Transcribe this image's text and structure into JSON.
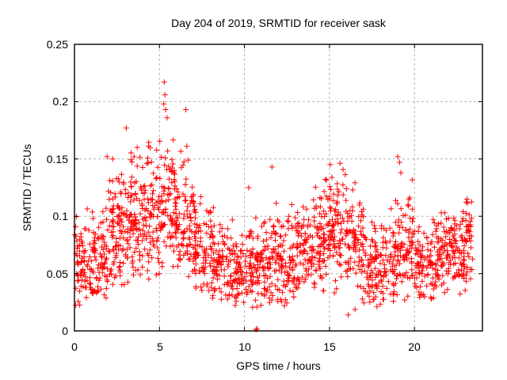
{
  "title": "Day 204 of 2019, SRMTID for receiver sask",
  "chart_data": {
    "type": "scatter",
    "title": "Day 204 of 2019, SRMTID for receiver sask",
    "xlabel": "GPS time / hours",
    "ylabel": "SRMTID / TECUs",
    "xlim": [
      0,
      24
    ],
    "ylim": [
      0,
      0.25
    ],
    "xticks": [
      0,
      5,
      10,
      15,
      20
    ],
    "xtick_labels": [
      "0",
      "5",
      "10",
      "15",
      "20"
    ],
    "yticks": [
      0,
      0.05,
      0.1,
      0.15,
      0.2,
      0.25
    ],
    "ytick_labels": [
      "0",
      "0.05",
      "0.1",
      "0.15",
      "0.2",
      "0.25"
    ],
    "grid": true,
    "legend": "none",
    "marker": "plus",
    "marker_color": "#ff0000",
    "grid_color": "#b2b2b2",
    "axis_color": "#000000",
    "background": "#ffffff",
    "seed": 20419,
    "density_profile": [
      {
        "h0": 0,
        "h1": 1,
        "n": 78,
        "mean": 0.055,
        "sd": 0.021,
        "lo": 0.022,
        "hi": 0.112
      },
      {
        "h0": 1,
        "h1": 2,
        "n": 82,
        "mean": 0.062,
        "sd": 0.024,
        "lo": 0.025,
        "hi": 0.155
      },
      {
        "h0": 2,
        "h1": 3,
        "n": 95,
        "mean": 0.086,
        "sd": 0.027,
        "lo": 0.035,
        "hi": 0.163
      },
      {
        "h0": 3,
        "h1": 4,
        "n": 95,
        "mean": 0.093,
        "sd": 0.028,
        "lo": 0.04,
        "hi": 0.178
      },
      {
        "h0": 4,
        "h1": 5,
        "n": 90,
        "mean": 0.101,
        "sd": 0.027,
        "lo": 0.045,
        "hi": 0.168
      },
      {
        "h0": 5,
        "h1": 6,
        "n": 90,
        "mean": 0.113,
        "sd": 0.03,
        "lo": 0.05,
        "hi": 0.2
      },
      {
        "h0": 6,
        "h1": 7,
        "n": 85,
        "mean": 0.098,
        "sd": 0.028,
        "lo": 0.045,
        "hi": 0.163
      },
      {
        "h0": 7,
        "h1": 8,
        "n": 80,
        "mean": 0.072,
        "sd": 0.022,
        "lo": 0.032,
        "hi": 0.128
      },
      {
        "h0": 8,
        "h1": 9,
        "n": 80,
        "mean": 0.06,
        "sd": 0.02,
        "lo": 0.022,
        "hi": 0.118
      },
      {
        "h0": 9,
        "h1": 10,
        "n": 80,
        "mean": 0.051,
        "sd": 0.017,
        "lo": 0.018,
        "hi": 0.098
      },
      {
        "h0": 10,
        "h1": 11,
        "n": 80,
        "mean": 0.052,
        "sd": 0.019,
        "lo": 0.02,
        "hi": 0.128
      },
      {
        "h0": 11,
        "h1": 12,
        "n": 80,
        "mean": 0.057,
        "sd": 0.021,
        "lo": 0.024,
        "hi": 0.145
      },
      {
        "h0": 12,
        "h1": 13,
        "n": 80,
        "mean": 0.058,
        "sd": 0.02,
        "lo": 0.022,
        "hi": 0.118
      },
      {
        "h0": 13,
        "h1": 14,
        "n": 80,
        "mean": 0.067,
        "sd": 0.022,
        "lo": 0.028,
        "hi": 0.135
      },
      {
        "h0": 14,
        "h1": 15,
        "n": 85,
        "mean": 0.078,
        "sd": 0.024,
        "lo": 0.034,
        "hi": 0.148
      },
      {
        "h0": 15,
        "h1": 16,
        "n": 90,
        "mean": 0.088,
        "sd": 0.026,
        "lo": 0.03,
        "hi": 0.147
      },
      {
        "h0": 16,
        "h1": 17,
        "n": 85,
        "mean": 0.078,
        "sd": 0.025,
        "lo": 0.013,
        "hi": 0.132
      },
      {
        "h0": 17,
        "h1": 18,
        "n": 75,
        "mean": 0.058,
        "sd": 0.019,
        "lo": 0.02,
        "hi": 0.096
      },
      {
        "h0": 18,
        "h1": 19,
        "n": 75,
        "mean": 0.062,
        "sd": 0.023,
        "lo": 0.022,
        "hi": 0.138
      },
      {
        "h0": 19,
        "h1": 20,
        "n": 80,
        "mean": 0.072,
        "sd": 0.026,
        "lo": 0.026,
        "hi": 0.148
      },
      {
        "h0": 20,
        "h1": 21,
        "n": 75,
        "mean": 0.06,
        "sd": 0.018,
        "lo": 0.025,
        "hi": 0.102
      },
      {
        "h0": 21,
        "h1": 22,
        "n": 80,
        "mean": 0.066,
        "sd": 0.02,
        "lo": 0.028,
        "hi": 0.112
      },
      {
        "h0": 22,
        "h1": 23,
        "n": 85,
        "mean": 0.071,
        "sd": 0.021,
        "lo": 0.032,
        "hi": 0.12
      },
      {
        "h0": 23,
        "h1": 23.45,
        "n": 38,
        "mean": 0.08,
        "sd": 0.02,
        "lo": 0.035,
        "hi": 0.118
      }
    ],
    "notable_points": [
      [
        5.28,
        0.217
      ],
      [
        5.32,
        0.206
      ],
      [
        5.25,
        0.198
      ],
      [
        5.36,
        0.193
      ],
      [
        5.45,
        0.186
      ],
      [
        6.55,
        0.193
      ],
      [
        3.05,
        0.177
      ],
      [
        1.92,
        0.152
      ],
      [
        10.68,
        0.001
      ],
      [
        10.74,
        0.002
      ],
      [
        10.25,
        0.125
      ],
      [
        11.62,
        0.143
      ],
      [
        15.05,
        0.145
      ],
      [
        19.02,
        0.152
      ],
      [
        19.12,
        0.147
      ],
      [
        16.1,
        0.014
      ],
      [
        23.1,
        0.115
      ]
    ]
  }
}
